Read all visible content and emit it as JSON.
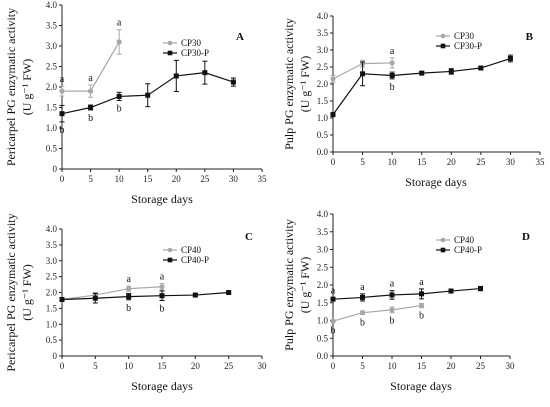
{
  "chart_data": [
    {
      "panel": "A",
      "type": "line",
      "xlabel": "Storage days",
      "ylabel": "Pericarpel PG enzymatic activity",
      "ylabel2": "(U g⁻¹ FW)",
      "xlim": [
        0,
        35
      ],
      "ylim": [
        0,
        4.0
      ],
      "xticks": [
        "0",
        "5",
        "10",
        "15",
        "20",
        "25",
        "30",
        "35"
      ],
      "yticks": [
        "0",
        "0.5",
        "1.0",
        "1.5",
        "2.0",
        "2.5",
        "3.0",
        "3.5",
        "4.0"
      ],
      "legend_position": "top-right",
      "series": [
        {
          "name": "CP30",
          "color": "#a8a8a8",
          "x": [
            0,
            5,
            10
          ],
          "y": [
            1.9,
            1.9,
            3.1
          ],
          "err": [
            0.12,
            0.15,
            0.3
          ],
          "letters": [
            "a",
            "a",
            "a"
          ]
        },
        {
          "name": "CP30-P",
          "color": "#111111",
          "x": [
            0,
            5,
            10,
            15,
            20,
            25,
            30
          ],
          "y": [
            1.35,
            1.5,
            1.77,
            1.8,
            2.27,
            2.35,
            2.12
          ],
          "err": [
            0.2,
            0.06,
            0.1,
            0.28,
            0.38,
            0.28,
            0.1
          ],
          "letters": [
            "b",
            "b",
            "b",
            "",
            "",
            "",
            ""
          ]
        }
      ]
    },
    {
      "panel": "B",
      "type": "line",
      "xlabel": "Storage days",
      "ylabel": "Pulp PG enzymatic activity",
      "ylabel2": "(U g⁻¹ FW)",
      "xlim": [
        0,
        35
      ],
      "ylim": [
        0,
        4.0
      ],
      "xticks": [
        "0",
        "5",
        "10",
        "15",
        "20",
        "25",
        "30",
        "35"
      ],
      "yticks": [
        "0.0",
        "0.5",
        "1.0",
        "1.5",
        "2.0",
        "2.5",
        "3.0",
        "3.5",
        "4.0"
      ],
      "legend_position": "top-right",
      "series": [
        {
          "name": "CP30",
          "color": "#a8a8a8",
          "x": [
            0,
            5,
            10
          ],
          "y": [
            2.15,
            2.6,
            2.62
          ],
          "err": [
            0.1,
            0.1,
            0.15
          ],
          "letters": [
            "",
            "",
            "a"
          ]
        },
        {
          "name": "CP30-P",
          "color": "#111111",
          "x": [
            0,
            5,
            10,
            15,
            20,
            25,
            30
          ],
          "y": [
            1.1,
            2.3,
            2.25,
            2.32,
            2.37,
            2.47,
            2.75
          ],
          "err": [
            0.05,
            0.35,
            0.1,
            0.05,
            0.08,
            0.05,
            0.1
          ],
          "letters": [
            "",
            "",
            "b",
            "",
            "",
            "",
            ""
          ]
        }
      ]
    },
    {
      "panel": "C",
      "type": "line",
      "xlabel": "Storage days",
      "ylabel": "Pericarpel PG enzymatic activity",
      "ylabel2": "(U g⁻¹ FW)",
      "xlim": [
        0,
        30
      ],
      "ylim": [
        0,
        4.0
      ],
      "xticks": [
        "0",
        "5",
        "10",
        "15",
        "20",
        "25",
        "30"
      ],
      "yticks": [
        "0",
        "0.5",
        "1.0",
        "1.5",
        "2.0",
        "2.5",
        "3.0",
        "3.5",
        "4.0"
      ],
      "legend_position": "top-right",
      "series": [
        {
          "name": "CP40",
          "color": "#a8a8a8",
          "x": [
            0,
            5,
            10,
            15
          ],
          "y": [
            1.78,
            1.92,
            2.12,
            2.18
          ],
          "err": [
            0.05,
            0.08,
            0.08,
            0.1
          ],
          "letters": [
            "",
            "",
            "a",
            "a"
          ]
        },
        {
          "name": "CP40-P",
          "color": "#111111",
          "x": [
            0,
            5,
            10,
            15,
            20,
            25
          ],
          "y": [
            1.78,
            1.82,
            1.87,
            1.9,
            1.92,
            2.0
          ],
          "err": [
            0.05,
            0.15,
            0.1,
            0.15,
            0.04,
            0.04
          ],
          "letters": [
            "",
            "",
            "b",
            "b",
            "",
            ""
          ]
        }
      ]
    },
    {
      "panel": "D",
      "type": "line",
      "xlabel": "Storage days",
      "ylabel": "Pulp PG enzymatic activity",
      "ylabel2": "(U g⁻¹ FW)",
      "xlim": [
        0,
        30
      ],
      "ylim": [
        0,
        4.0
      ],
      "xticks": [
        "0",
        "5",
        "10",
        "15",
        "20",
        "25",
        "30"
      ],
      "yticks": [
        "0.0",
        "0.5",
        "1.0",
        "1.5",
        "2.0",
        "2.5",
        "3.0",
        "3.5",
        "4.0"
      ],
      "legend_position": "top-right",
      "series": [
        {
          "name": "CP40",
          "color": "#a8a8a8",
          "x": [
            0,
            5,
            10,
            15
          ],
          "y": [
            0.98,
            1.22,
            1.3,
            1.42
          ],
          "err": [
            0.04,
            0.05,
            0.08,
            0.06
          ],
          "letters": [
            "b",
            "b",
            "b",
            "b"
          ]
        },
        {
          "name": "CP40-P",
          "color": "#111111",
          "x": [
            0,
            5,
            10,
            15,
            20,
            25
          ],
          "y": [
            1.6,
            1.65,
            1.72,
            1.75,
            1.83,
            1.9
          ],
          "err": [
            0.05,
            0.1,
            0.12,
            0.14,
            0.05,
            0.06
          ],
          "letters": [
            "a",
            "a",
            "a",
            "a",
            "",
            ""
          ]
        }
      ]
    }
  ]
}
